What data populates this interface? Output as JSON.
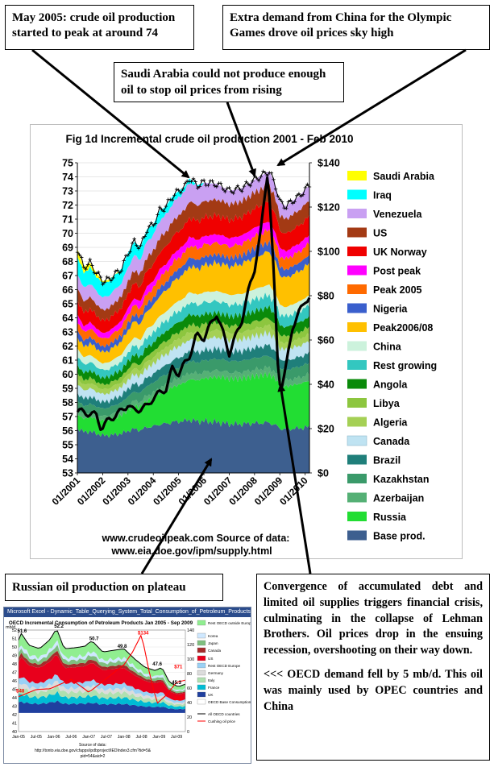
{
  "callouts": {
    "peak_2005": "May 2005: crude oil production started to peak at around 74",
    "china_olympics": "Extra demand from China for the Olympic Games drove oil prices sky high",
    "saudi": "Saudi Arabia could not produce enough oil to stop oil prices from rising",
    "russia": "Russian oil production on plateau",
    "crisis_p1": "Convergence of accumulated debt and limited oil supplies triggers financial crisis, culminating in the collapse of Lehman Brothers. Oil prices drop in the ensuing recession, overshooting on their way down.",
    "crisis_p2": "<<< OECD demand fell by 5 mb/d. This oil was mainly used by OPEC countries and China"
  },
  "chart_data": [
    {
      "type": "area",
      "title": "Fig 1d Incremental crude oil production 2001 - Feb 2010",
      "source_line1": "www.crudeoilpeak.com      Source of data:",
      "source_line2": "www.eia.doe.gov/ipm/supply.html",
      "x_ticks": [
        "01/2001",
        "01/2002",
        "01/2003",
        "01/2004",
        "01/2005",
        "01/2006",
        "01/2007",
        "01/2008",
        "01/2009",
        "01/2010"
      ],
      "y_left": {
        "min": 53,
        "max": 75,
        "ticks": [
          53,
          54,
          55,
          56,
          57,
          58,
          59,
          60,
          61,
          62,
          63,
          64,
          65,
          66,
          67,
          68,
          69,
          70,
          71,
          72,
          73,
          74,
          75
        ]
      },
      "y_right": {
        "min": 0,
        "max": 140,
        "ticks": [
          "$0",
          "$20",
          "$40",
          "$60",
          "$80",
          "$100",
          "$120",
          "$140"
        ]
      },
      "x_range": [
        2001.0,
        2010.17
      ],
      "total_production_anchors": [
        [
          2001.0,
          68.9
        ],
        [
          2001.25,
          67.6
        ],
        [
          2001.5,
          67.9
        ],
        [
          2001.75,
          67.2
        ],
        [
          2002.0,
          66.6
        ],
        [
          2002.25,
          66.7
        ],
        [
          2002.5,
          67.1
        ],
        [
          2002.75,
          67.5
        ],
        [
          2003.0,
          68.6
        ],
        [
          2003.25,
          69.4
        ],
        [
          2003.5,
          69.0
        ],
        [
          2003.75,
          70.3
        ],
        [
          2004.0,
          70.6
        ],
        [
          2004.25,
          71.6
        ],
        [
          2004.5,
          71.9
        ],
        [
          2004.75,
          72.6
        ],
        [
          2005.0,
          73.0
        ],
        [
          2005.25,
          73.3
        ],
        [
          2005.42,
          73.9
        ],
        [
          2005.75,
          73.4
        ],
        [
          2006.0,
          73.6
        ],
        [
          2006.5,
          73.5
        ],
        [
          2007.0,
          73.0
        ],
        [
          2007.5,
          73.2
        ],
        [
          2008.0,
          73.8
        ],
        [
          2008.58,
          74.4
        ],
        [
          2008.83,
          73.4
        ],
        [
          2009.0,
          72.2
        ],
        [
          2009.25,
          71.9
        ],
        [
          2009.5,
          72.3
        ],
        [
          2009.75,
          72.6
        ],
        [
          2010.0,
          73.1
        ],
        [
          2010.17,
          73.4
        ]
      ],
      "oil_price_anchors": [
        [
          2001.0,
          28
        ],
        [
          2001.4,
          27
        ],
        [
          2001.75,
          26
        ],
        [
          2001.95,
          20
        ],
        [
          2002.25,
          24
        ],
        [
          2002.5,
          26
        ],
        [
          2002.75,
          28
        ],
        [
          2003.0,
          31
        ],
        [
          2003.2,
          28
        ],
        [
          2003.5,
          29
        ],
        [
          2003.75,
          30
        ],
        [
          2004.0,
          34
        ],
        [
          2004.5,
          38
        ],
        [
          2004.75,
          47
        ],
        [
          2005.0,
          45
        ],
        [
          2005.4,
          52
        ],
        [
          2005.7,
          62
        ],
        [
          2006.0,
          61
        ],
        [
          2006.5,
          72
        ],
        [
          2006.9,
          58
        ],
        [
          2007.0,
          54
        ],
        [
          2007.5,
          69
        ],
        [
          2007.8,
          84
        ],
        [
          2008.0,
          92
        ],
        [
          2008.25,
          109
        ],
        [
          2008.5,
          135
        ],
        [
          2008.6,
          124
        ],
        [
          2008.8,
          80
        ],
        [
          2008.95,
          42
        ],
        [
          2009.1,
          40
        ],
        [
          2009.25,
          48
        ],
        [
          2009.5,
          66
        ],
        [
          2009.75,
          72
        ],
        [
          2010.0,
          78
        ],
        [
          2010.17,
          79
        ]
      ],
      "series": [
        {
          "name": "Saudi Arabia",
          "color": "#ffff00"
        },
        {
          "name": "Iraq",
          "color": "#00ffff"
        },
        {
          "name": "Venezuela",
          "color": "#c9a0f2"
        },
        {
          "name": "US",
          "color": "#a33a14"
        },
        {
          "name": "UK Norway",
          "color": "#f00000"
        },
        {
          "name": "Post peak",
          "color": "#ff00ff"
        },
        {
          "name": "Peak 2005",
          "color": "#ff6a00"
        },
        {
          "name": "Nigeria",
          "color": "#3a5fcd"
        },
        {
          "name": "Peak2006/08",
          "color": "#ffc000"
        },
        {
          "name": "China",
          "color": "#ccf2dc"
        },
        {
          "name": "Rest growing",
          "color": "#33c7c0"
        },
        {
          "name": "Angola",
          "color": "#0a8a0a"
        },
        {
          "name": "Libya",
          "color": "#8dc63f"
        },
        {
          "name": "Algeria",
          "color": "#a5d055"
        },
        {
          "name": "Canada",
          "color": "#bfe3f2"
        },
        {
          "name": "Brazil",
          "color": "#1f7f7a"
        },
        {
          "name": "Kazakhstan",
          "color": "#3a9a6a"
        },
        {
          "name": "Azerbaijan",
          "color": "#55b075"
        },
        {
          "name": "Russia",
          "color": "#22dd33"
        },
        {
          "name": "Base prod.",
          "color": "#3d5f8f"
        }
      ]
    },
    {
      "type": "area",
      "window_title": "Microsoft Excel - Dynamic_Table_Querying_System_Total_Consumption_of_Petroleum_Products_(Thousand_Barrels_Per_Day)",
      "title": "OECD Incremental Consumption of Petroleum Products Jan 2005 - Sep 2009",
      "ylabel": "mb/d",
      "y_left": {
        "min": 40,
        "max": 52,
        "ticks": [
          40,
          41,
          42,
          43,
          44,
          45,
          46,
          47,
          48,
          49,
          50,
          51,
          52
        ]
      },
      "y_right": {
        "min": 0,
        "max": 140,
        "ticks": [
          0,
          20,
          40,
          60,
          80,
          100,
          120,
          140
        ]
      },
      "x_ticks": [
        "Jan-05",
        "Jul-05",
        "Jan-06",
        "Jul-06",
        "Jan-07",
        "Jul-07",
        "Jan-08",
        "Jul-08",
        "Jan-09",
        "Jul-09"
      ],
      "x_range": [
        2005.0,
        2009.75
      ],
      "annotations": [
        "51.6",
        "52.2",
        "50.7",
        "49.8",
        "$134",
        "47.6",
        "$48",
        "45.3",
        "$71",
        "$39"
      ],
      "source_line1": "Source of data:",
      "source_line2": "http://tonto.eia.doe.gov/cfapps/ipdbproject/IEDIndex3.cfm?tid=5&",
      "source_line3": "pid=54&aid=2",
      "total_anchors": [
        [
          2005.0,
          50.8
        ],
        [
          2005.08,
          51.6
        ],
        [
          2005.3,
          50.2
        ],
        [
          2005.6,
          49.8
        ],
        [
          2005.9,
          50.9
        ],
        [
          2006.08,
          52.2
        ],
        [
          2006.3,
          49.8
        ],
        [
          2006.6,
          49.9
        ],
        [
          2006.9,
          50.1
        ],
        [
          2007.0,
          50.5
        ],
        [
          2007.1,
          50.7
        ],
        [
          2007.4,
          49.4
        ],
        [
          2007.7,
          49.6
        ],
        [
          2008.0,
          49.8
        ],
        [
          2008.3,
          48.6
        ],
        [
          2008.6,
          47.6
        ],
        [
          2008.9,
          47.2
        ],
        [
          2009.08,
          47.6
        ],
        [
          2009.3,
          45.8
        ],
        [
          2009.55,
          45.3
        ],
        [
          2009.75,
          45.6
        ]
      ],
      "price_anchors": [
        [
          2005.0,
          48
        ],
        [
          2005.5,
          58
        ],
        [
          2005.9,
          59
        ],
        [
          2006.5,
          72
        ],
        [
          2006.9,
          58
        ],
        [
          2007.0,
          54
        ],
        [
          2007.5,
          73
        ],
        [
          2008.0,
          92
        ],
        [
          2008.25,
          110
        ],
        [
          2008.5,
          134
        ],
        [
          2008.75,
          76
        ],
        [
          2008.95,
          39
        ],
        [
          2009.2,
          50
        ],
        [
          2009.5,
          68
        ],
        [
          2009.75,
          71
        ]
      ],
      "legend": [
        {
          "name": "Rest OECD outside Europe",
          "color": "#90ee90"
        },
        {
          "name": "Korea",
          "color": "#cfe8ff"
        },
        {
          "name": "Japan",
          "color": "#7fbf7f"
        },
        {
          "name": "Canada",
          "color": "#a52a2a"
        },
        {
          "name": "US",
          "color": "#e8001c"
        },
        {
          "name": "Rest OECD Europe",
          "color": "#9ad1f5"
        },
        {
          "name": "Germany",
          "color": "#dcdcdc"
        },
        {
          "name": "Italy",
          "color": "#b0e0b0"
        },
        {
          "name": "France",
          "color": "#00bcd4"
        },
        {
          "name": "UK",
          "color": "#1f3f9f"
        },
        {
          "name": "OECD Base Consumption",
          "color": "#ffffff"
        },
        {
          "name": "All OECD countries",
          "color": "#000000"
        },
        {
          "name": "Cushing oil price",
          "color": "#ff0000"
        }
      ]
    }
  ]
}
